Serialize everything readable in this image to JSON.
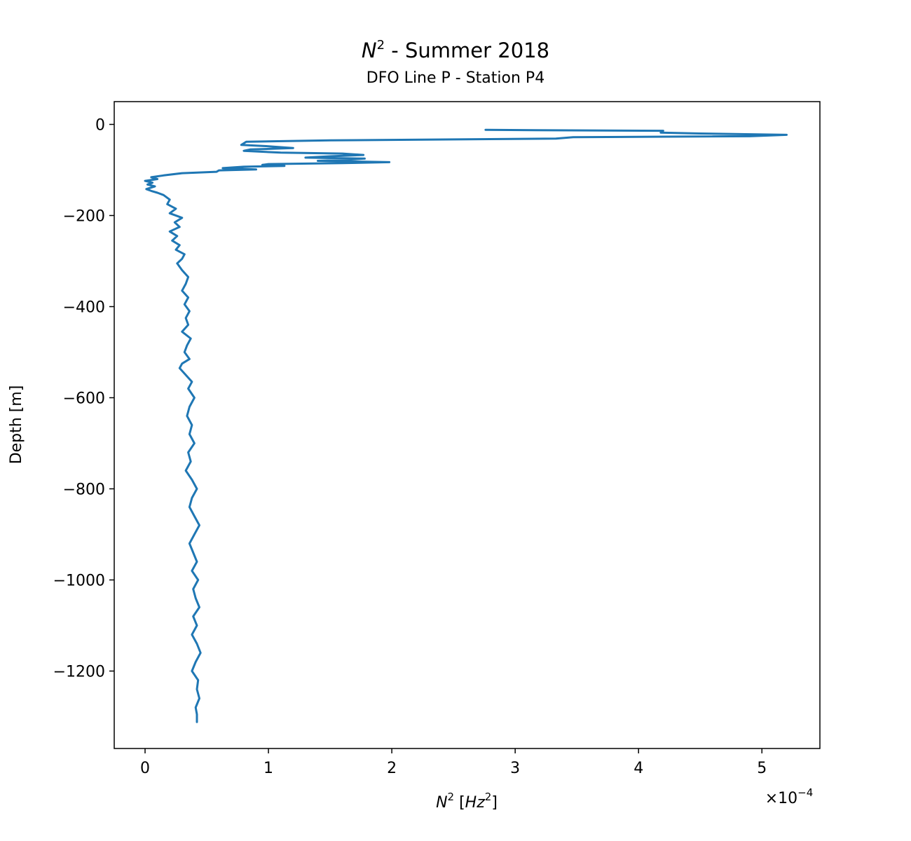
{
  "chart_data": {
    "type": "line",
    "title_symbol": "N",
    "title_sup": "2",
    "title_rest": " - Summer 2018",
    "subtitle": "DFO Line P - Station P4",
    "xlabel_symbol": "N",
    "xlabel_sup": "2",
    "xlabel_bracket_open": " [",
    "xlabel_unit": "Hz",
    "xlabel_unit_sup": "2",
    "xlabel_bracket_close": "]",
    "ylabel": "Depth [m]",
    "x_multiplier_base": "×10",
    "x_multiplier_exp": "−4",
    "x_scale": 0.0001,
    "xlim": [
      -0.25,
      5.47
    ],
    "ylim": [
      -1370,
      50
    ],
    "xticks": [
      0,
      1,
      2,
      3,
      4,
      5
    ],
    "xtick_labels": [
      "0",
      "1",
      "2",
      "3",
      "4",
      "5"
    ],
    "yticks": [
      0,
      -200,
      -400,
      -600,
      -800,
      -1000,
      -1200
    ],
    "ytick_labels": [
      "0",
      "−200",
      "−400",
      "−600",
      "−800",
      "−1000",
      "−1200"
    ],
    "grid": false,
    "line_color": "#1f77b4",
    "series": [
      {
        "x": [
          2.76,
          3.3,
          4.2,
          4.18,
          4.5,
          5.2,
          4.9,
          3.47,
          3.33,
          1.5,
          0.82,
          0.78,
          1.0,
          1.2,
          0.85,
          0.8,
          1.1,
          1.6,
          1.77,
          1.5,
          1.3,
          1.78,
          1.6,
          1.4,
          1.98,
          1.6,
          1.0,
          0.95,
          1.13,
          0.8,
          0.63,
          0.9,
          0.6,
          0.58,
          0.3,
          0.15,
          0.05,
          0.1,
          0.0,
          0.06,
          0.02,
          0.08,
          0.01,
          0.05,
          0.1,
          0.15,
          0.2,
          0.18,
          0.25,
          0.2,
          0.3,
          0.24,
          0.28,
          0.2,
          0.26,
          0.22,
          0.28,
          0.25,
          0.32,
          0.3,
          0.26,
          0.3,
          0.35,
          0.33,
          0.3,
          0.35,
          0.32,
          0.36,
          0.33,
          0.35,
          0.3,
          0.37,
          0.34,
          0.32,
          0.36,
          0.3,
          0.28,
          0.33,
          0.38,
          0.35,
          0.4,
          0.36,
          0.34,
          0.38,
          0.36,
          0.4,
          0.35,
          0.37,
          0.33,
          0.38,
          0.42,
          0.38,
          0.36,
          0.4,
          0.44,
          0.4,
          0.36,
          0.39,
          0.42,
          0.38,
          0.43,
          0.39,
          0.41,
          0.44,
          0.39,
          0.42,
          0.38,
          0.42,
          0.45,
          0.41,
          0.38,
          0.43,
          0.42,
          0.44,
          0.41,
          0.42,
          0.42,
          0.42
        ],
        "y": [
          -12,
          -13,
          -14,
          -18,
          -20,
          -23,
          -26,
          -28,
          -31,
          -35,
          -38,
          -45,
          -48,
          -52,
          -55,
          -58,
          -62,
          -64,
          -67,
          -70,
          -73,
          -75,
          -78,
          -80,
          -83,
          -85,
          -87,
          -89,
          -91,
          -93,
          -96,
          -99,
          -101,
          -104,
          -107,
          -112,
          -116,
          -120,
          -124,
          -128,
          -132,
          -136,
          -142,
          -146,
          -150,
          -155,
          -165,
          -175,
          -185,
          -195,
          -205,
          -215,
          -225,
          -235,
          -245,
          -255,
          -265,
          -275,
          -285,
          -295,
          -305,
          -320,
          -335,
          -350,
          -365,
          -380,
          -395,
          -410,
          -425,
          -440,
          -455,
          -470,
          -485,
          -500,
          -515,
          -525,
          -535,
          -550,
          -565,
          -580,
          -600,
          -620,
          -640,
          -660,
          -680,
          -700,
          -720,
          -740,
          -760,
          -780,
          -800,
          -820,
          -840,
          -860,
          -880,
          -900,
          -920,
          -940,
          -960,
          -980,
          -1000,
          -1020,
          -1040,
          -1060,
          -1080,
          -1100,
          -1120,
          -1140,
          -1160,
          -1180,
          -1200,
          -1220,
          -1240,
          -1260,
          -1280,
          -1295,
          -1305,
          -1312
        ]
      }
    ]
  }
}
